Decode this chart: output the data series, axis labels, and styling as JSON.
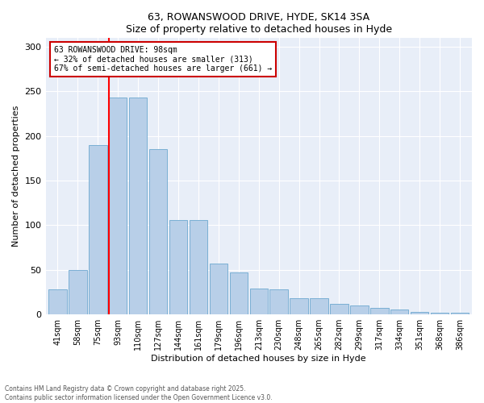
{
  "title1": "63, ROWANSWOOD DRIVE, HYDE, SK14 3SA",
  "title2": "Size of property relative to detached houses in Hyde",
  "xlabel": "Distribution of detached houses by size in Hyde",
  "ylabel": "Number of detached properties",
  "categories": [
    "41sqm",
    "58sqm",
    "75sqm",
    "93sqm",
    "110sqm",
    "127sqm",
    "144sqm",
    "161sqm",
    "179sqm",
    "196sqm",
    "213sqm",
    "230sqm",
    "248sqm",
    "265sqm",
    "282sqm",
    "299sqm",
    "317sqm",
    "334sqm",
    "351sqm",
    "368sqm",
    "386sqm"
  ],
  "values": [
    28,
    50,
    190,
    243,
    243,
    185,
    106,
    106,
    57,
    47,
    29,
    28,
    18,
    18,
    12,
    10,
    7,
    6,
    3,
    2,
    2
  ],
  "bar_color": "#b8cfe8",
  "bar_edge_color": "#7aafd4",
  "property_label": "63 ROWANSWOOD DRIVE: 98sqm",
  "pct_smaller": "32% of detached houses are smaller (313)",
  "pct_larger": "67% of semi-detached houses are larger (661)",
  "vline_x_index": 3,
  "annotation_box_color": "#cc0000",
  "background_color": "#e8eef8",
  "footer1": "Contains HM Land Registry data © Crown copyright and database right 2025.",
  "footer2": "Contains public sector information licensed under the Open Government Licence v3.0.",
  "ylim": [
    0,
    310
  ],
  "yticks": [
    0,
    50,
    100,
    150,
    200,
    250,
    300
  ]
}
